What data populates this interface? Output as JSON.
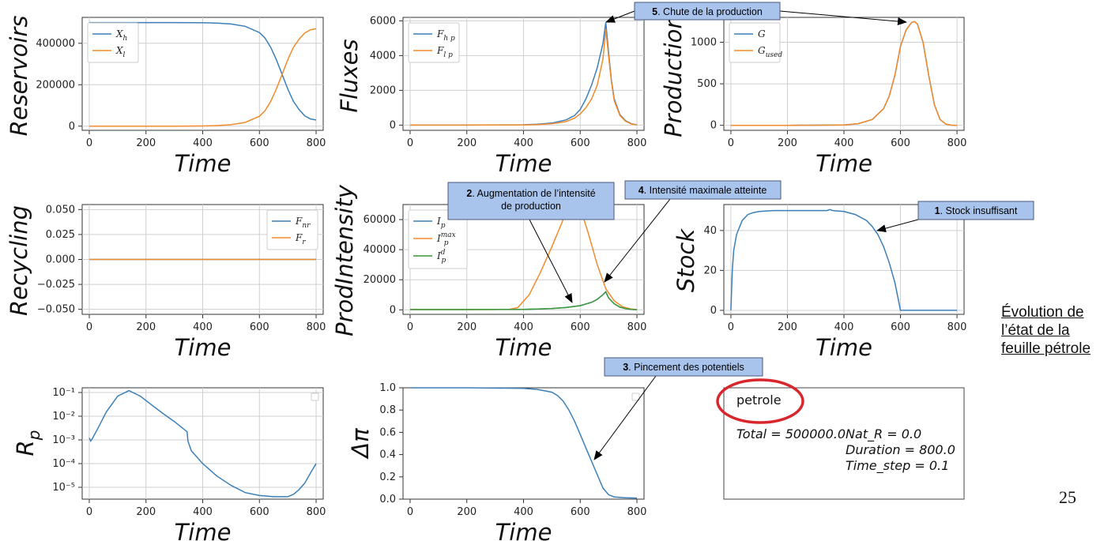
{
  "chart_data": [
    {
      "type": "line",
      "id": "reservoirs",
      "ylabel": "Reservoirs",
      "xlabel": "Time",
      "xlim": [
        -25,
        825
      ],
      "ylim": [
        -20000,
        525000
      ],
      "xticks": [
        0,
        200,
        400,
        600,
        800
      ],
      "yticks": [
        0,
        200000,
        400000
      ],
      "log": false,
      "grid": true,
      "legend": "upper-left",
      "series": [
        {
          "name": "X_h",
          "color": "#3b7fb8",
          "x": [
            0,
            100,
            200,
            300,
            400,
            450,
            500,
            550,
            600,
            620,
            640,
            660,
            680,
            700,
            720,
            740,
            760,
            780,
            800
          ],
          "y": [
            500000,
            500000,
            500000,
            500000,
            499000,
            497000,
            493000,
            482000,
            452000,
            425000,
            380000,
            320000,
            250000,
            180000,
            120000,
            80000,
            50000,
            35000,
            30000
          ]
        },
        {
          "name": "X_l",
          "color": "#f28b2b",
          "x": [
            0,
            100,
            200,
            300,
            400,
            450,
            500,
            550,
            600,
            620,
            640,
            660,
            680,
            700,
            720,
            740,
            760,
            780,
            800
          ],
          "y": [
            0,
            0,
            0,
            0,
            1000,
            3000,
            7000,
            18000,
            48000,
            75000,
            120000,
            180000,
            250000,
            320000,
            380000,
            420000,
            450000,
            465000,
            470000
          ]
        }
      ]
    },
    {
      "type": "line",
      "id": "fluxes",
      "ylabel": "Fluxes",
      "xlabel": "Time",
      "xlim": [
        -25,
        825
      ],
      "ylim": [
        -300,
        6200
      ],
      "xticks": [
        0,
        200,
        400,
        600,
        800
      ],
      "yticks": [
        0,
        2000,
        4000,
        6000
      ],
      "log": false,
      "grid": true,
      "legend": "upper-left",
      "series": [
        {
          "name": "F_h p",
          "color": "#3b7fb8",
          "x": [
            0,
            200,
            400,
            450,
            500,
            550,
            580,
            600,
            620,
            640,
            660,
            680,
            690,
            700,
            710,
            720,
            740,
            760,
            780,
            800
          ],
          "y": [
            0,
            0,
            20,
            50,
            120,
            300,
            550,
            900,
            1500,
            2300,
            3300,
            4700,
            5900,
            4200,
            2600,
            1500,
            600,
            250,
            80,
            20
          ]
        },
        {
          "name": "F_l p",
          "color": "#f28b2b",
          "x": [
            0,
            200,
            400,
            450,
            500,
            550,
            580,
            600,
            620,
            640,
            660,
            680,
            690,
            700,
            710,
            720,
            740,
            760,
            780,
            800
          ],
          "y": [
            0,
            0,
            10,
            30,
            80,
            200,
            400,
            650,
            1000,
            1500,
            2300,
            3800,
            5500,
            4000,
            2500,
            1400,
            550,
            220,
            70,
            15
          ]
        }
      ]
    },
    {
      "type": "line",
      "id": "production",
      "ylabel": "Production",
      "xlabel": "Time",
      "xlim": [
        -25,
        825
      ],
      "ylim": [
        -60,
        1300
      ],
      "xticks": [
        0,
        200,
        400,
        600,
        800
      ],
      "yticks": [
        0,
        500,
        1000
      ],
      "log": false,
      "grid": true,
      "legend": "upper-left",
      "series": [
        {
          "name": "G",
          "color": "#3b7fb8",
          "x": [
            0,
            200,
            400,
            450,
            500,
            540,
            560,
            580,
            600,
            620,
            640,
            650,
            660,
            680,
            700,
            720,
            740,
            760,
            780,
            800
          ],
          "y": [
            0,
            0,
            5,
            20,
            70,
            200,
            350,
            600,
            950,
            1150,
            1240,
            1250,
            1220,
            1000,
            600,
            250,
            70,
            15,
            2,
            0
          ]
        },
        {
          "name": "G_used",
          "color": "#f28b2b",
          "x": [
            0,
            200,
            400,
            450,
            500,
            540,
            560,
            580,
            600,
            620,
            640,
            650,
            660,
            680,
            700,
            720,
            740,
            760,
            780,
            800
          ],
          "y": [
            0,
            0,
            5,
            20,
            70,
            200,
            350,
            600,
            950,
            1150,
            1240,
            1250,
            1220,
            1000,
            600,
            250,
            70,
            15,
            2,
            0
          ]
        }
      ]
    },
    {
      "type": "line",
      "id": "recycling",
      "ylabel": "Recycling",
      "xlabel": "Time",
      "xlim": [
        -25,
        825
      ],
      "ylim": [
        -0.055,
        0.055
      ],
      "xticks": [
        0,
        200,
        400,
        600,
        800
      ],
      "yticks": [
        0.05,
        0.025,
        0.0,
        -0.025,
        -0.05
      ],
      "ytick_labels": [
        "0.050",
        "0.025",
        "0.000",
        "−0.025",
        "−0.050"
      ],
      "log": false,
      "grid": true,
      "legend": "upper-right",
      "series": [
        {
          "name": "F_nr",
          "color": "#3b7fb8",
          "x": [
            0,
            800
          ],
          "y": [
            0,
            0
          ]
        },
        {
          "name": "F_r",
          "color": "#f28b2b",
          "x": [
            0,
            800
          ],
          "y": [
            0,
            0
          ]
        }
      ]
    },
    {
      "type": "line",
      "id": "prodintensity",
      "ylabel": "ProdIntensity",
      "xlabel": "Time",
      "xlim": [
        -25,
        825
      ],
      "ylim": [
        -3000,
        70000
      ],
      "xticks": [
        0,
        200,
        400,
        600,
        800
      ],
      "yticks": [
        0,
        20000,
        40000,
        60000
      ],
      "log": false,
      "grid": true,
      "legend": "upper-left",
      "series": [
        {
          "name": "I_p",
          "color": "#3b7fb8",
          "x": [
            0,
            200,
            400,
            450,
            500,
            550,
            600,
            640,
            660,
            680,
            690,
            700,
            720,
            740,
            760,
            780,
            800
          ],
          "y": [
            200,
            200,
            300,
            500,
            900,
            1500,
            2800,
            5000,
            7000,
            10000,
            12000,
            8000,
            4000,
            1800,
            800,
            300,
            100
          ]
        },
        {
          "name": "I_p^max",
          "color": "#f28b2b",
          "x": [
            0,
            300,
            350,
            380,
            420,
            460,
            500,
            540,
            560,
            570,
            590,
            600,
            630,
            660,
            690,
            720,
            750,
            780,
            800
          ],
          "y": [
            200,
            200,
            300,
            1500,
            10000,
            25000,
            42000,
            60000,
            68000,
            75000,
            75000,
            68000,
            50000,
            30000,
            14000,
            6000,
            2000,
            500,
            150
          ]
        },
        {
          "name": "I_p^d",
          "color": "#3a9a3a",
          "x": [
            0,
            200,
            400,
            450,
            500,
            550,
            600,
            640,
            660,
            680,
            690,
            700,
            720,
            740,
            760,
            780,
            800
          ],
          "y": [
            200,
            200,
            300,
            500,
            900,
            1500,
            2800,
            5000,
            7000,
            10000,
            12000,
            8000,
            4000,
            1800,
            800,
            300,
            100
          ]
        }
      ]
    },
    {
      "type": "line",
      "id": "stock",
      "ylabel": "Stock",
      "xlabel": "Time",
      "xlim": [
        -25,
        825
      ],
      "ylim": [
        -2,
        53
      ],
      "xticks": [
        0,
        200,
        400,
        600,
        800
      ],
      "yticks": [
        0,
        20,
        40
      ],
      "log": false,
      "grid": true,
      "legend": "none",
      "series": [
        {
          "name": "",
          "color": "#3b7fb8",
          "x": [
            0,
            5,
            10,
            20,
            40,
            60,
            80,
            100,
            150,
            200,
            250,
            300,
            340,
            350,
            360,
            400,
            440,
            480,
            500,
            520,
            540,
            560,
            580,
            590,
            600,
            700,
            800
          ],
          "y": [
            0,
            20,
            30,
            38,
            45,
            48,
            49,
            49.5,
            50,
            50,
            50,
            50,
            50,
            50.5,
            50,
            49.5,
            48,
            45,
            42,
            38,
            32,
            24,
            14,
            7,
            0,
            0,
            0
          ]
        }
      ]
    },
    {
      "type": "line",
      "id": "rp",
      "ylabel": "R_p",
      "xlabel": "Time",
      "xlim": [
        -25,
        825
      ],
      "log": true,
      "ylim_log10": [
        -5.5,
        -0.8
      ],
      "xticks": [
        0,
        200,
        400,
        600,
        800
      ],
      "yticks_log10": [
        -5,
        -4,
        -3,
        -2,
        -1
      ],
      "grid": true,
      "legend": "upper-right-empty",
      "series": [
        {
          "name": "",
          "color": "#3b7fb8",
          "x": [
            0,
            5,
            10,
            30,
            60,
            100,
            140,
            180,
            220,
            260,
            300,
            345,
            348,
            360,
            400,
            450,
            500,
            550,
            600,
            650,
            700,
            720,
            740,
            760,
            780,
            800
          ],
          "y": [
            0.0012,
            0.0009,
            0.0011,
            0.003,
            0.015,
            0.07,
            0.12,
            0.07,
            0.03,
            0.013,
            0.006,
            0.0022,
            0.0009,
            0.00035,
            0.0001,
            3e-05,
            1.2e-05,
            6e-06,
            4.5e-06,
            4e-06,
            4e-06,
            5e-06,
            8e-06,
            1.5e-05,
            4e-05,
            0.0001
          ]
        }
      ]
    },
    {
      "type": "line",
      "id": "deltapi",
      "ylabel": "Δπ",
      "xlabel": "Time",
      "xlim": [
        -25,
        825
      ],
      "ylim": [
        0,
        1.0
      ],
      "xticks": [
        0,
        200,
        400,
        600,
        800
      ],
      "yticks": [
        0.0,
        0.2,
        0.4,
        0.6,
        0.8,
        1.0
      ],
      "ytick_labels": [
        "0.0",
        "0.2",
        "0.4",
        "0.6",
        "0.8",
        "1.0"
      ],
      "log": false,
      "grid": false,
      "legend": "upper-right-empty",
      "series": [
        {
          "name": "",
          "color": "#3b7fb8",
          "x": [
            0,
            200,
            400,
            450,
            500,
            520,
            540,
            560,
            580,
            600,
            620,
            640,
            660,
            680,
            700,
            720,
            760,
            800
          ],
          "y": [
            1.0,
            1.0,
            0.995,
            0.985,
            0.96,
            0.93,
            0.88,
            0.8,
            0.7,
            0.58,
            0.46,
            0.34,
            0.22,
            0.1,
            0.04,
            0.02,
            0.012,
            0.01
          ]
        }
      ]
    }
  ],
  "info_box": {
    "name": "petrole",
    "total": "Total = 500000.0",
    "nat": "Nat_R = 0.0",
    "duration": "Duration = 800.0",
    "timestep": "Time_step = 0.1"
  },
  "annotations": [
    {
      "id": "chute",
      "label_num": "5",
      "label_text": ". Chute de la production"
    },
    {
      "id": "augmentation",
      "label_num": "2",
      "label_text": ". Augmentation de l’intensité",
      "line2": "de production"
    },
    {
      "id": "intensite",
      "label_num": "4",
      "label_text": ". Intensité maximale atteinte"
    },
    {
      "id": "stock",
      "label_num": "1",
      "label_text": ". Stock insuffisant"
    },
    {
      "id": "pincement",
      "label_num": "3",
      "label_text": ". Pincement des potentiels"
    }
  ],
  "side_link": "Évolution de l’état de la feuille pétrole",
  "page_number": "25",
  "colors": {
    "blue": "#3b7fb8",
    "orange": "#f28b2b",
    "green": "#3a9a3a",
    "callout_fill": "#a9c4ec",
    "highlight": "#d9262c"
  }
}
